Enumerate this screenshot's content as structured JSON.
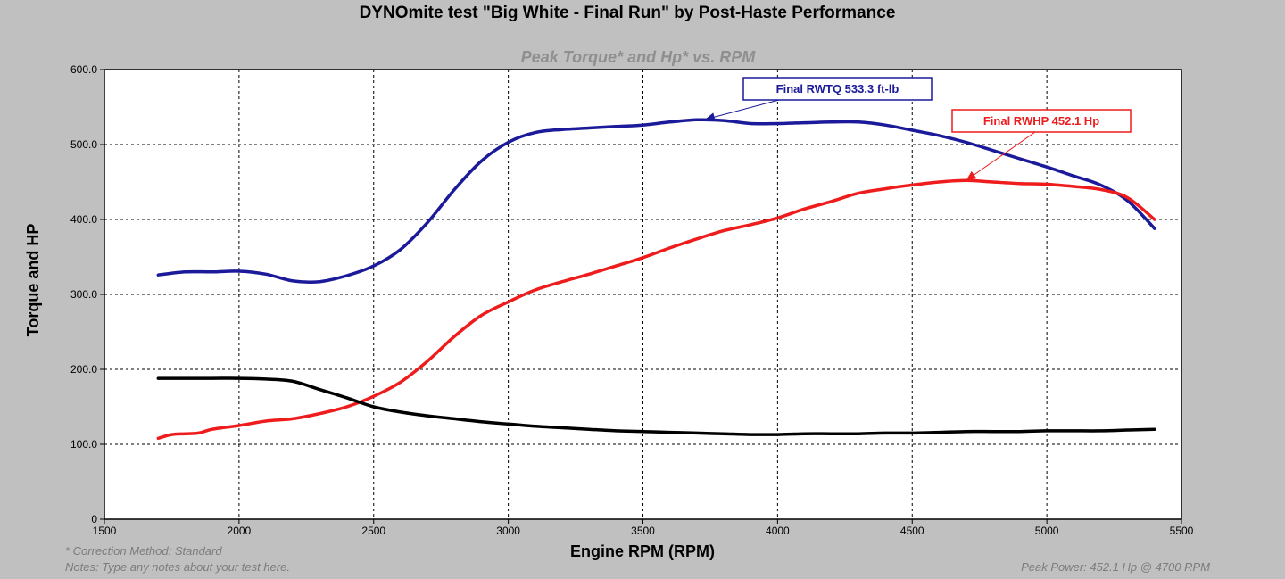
{
  "chart_data": {
    "type": "line",
    "title": "DYNOmite test \"Big White - Final Run\" by Post-Haste Performance",
    "subtitle": "Peak Torque* and Hp* vs. RPM",
    "xlabel": "Engine RPM (RPM)",
    "ylabel": "Torque and HP",
    "xlim": [
      1500,
      5500
    ],
    "ylim": [
      0,
      600
    ],
    "x_ticks": [
      "1500",
      "2000",
      "2500",
      "3000",
      "3500",
      "4000",
      "4500",
      "5000",
      "5500"
    ],
    "y_ticks": [
      "0",
      "100.0",
      "200.0",
      "300.0",
      "400.0",
      "500.0",
      "600.0"
    ],
    "grid": true,
    "series": [
      {
        "key": "torque",
        "color": "#1a1a9a",
        "x": [
          1700,
          1800,
          1900,
          2000,
          2100,
          2200,
          2300,
          2400,
          2500,
          2600,
          2700,
          2800,
          2900,
          3000,
          3100,
          3200,
          3300,
          3400,
          3500,
          3600,
          3700,
          3800,
          3900,
          4000,
          4100,
          4200,
          4300,
          4400,
          4500,
          4600,
          4700,
          4800,
          4900,
          5000,
          5100,
          5200,
          5300,
          5400
        ],
        "y": [
          326,
          330,
          330,
          331,
          327,
          318,
          317,
          325,
          338,
          360,
          396,
          440,
          478,
          503,
          516,
          520,
          522,
          524,
          526,
          530,
          533,
          532,
          528,
          528,
          529,
          530,
          530,
          526,
          519,
          512,
          503,
          492,
          481,
          470,
          458,
          446,
          425,
          388
        ]
      },
      {
        "key": "horsepower",
        "color": "#ee1c1c",
        "x": [
          1700,
          1750,
          1800,
          1850,
          1900,
          2000,
          2100,
          2200,
          2300,
          2400,
          2500,
          2600,
          2700,
          2800,
          2900,
          3000,
          3100,
          3200,
          3300,
          3400,
          3500,
          3600,
          3700,
          3800,
          3900,
          4000,
          4100,
          4200,
          4300,
          4400,
          4500,
          4600,
          4700,
          4800,
          4900,
          5000,
          5100,
          5200,
          5300,
          5400
        ],
        "y": [
          108,
          113,
          114,
          115,
          120,
          125,
          131,
          134,
          141,
          150,
          164,
          183,
          211,
          244,
          272,
          290,
          306,
          317,
          327,
          338,
          349,
          362,
          374,
          385,
          393,
          402,
          414,
          424,
          435,
          441,
          446,
          450,
          452,
          450,
          448,
          447,
          444,
          440,
          429,
          400
        ]
      },
      {
        "key": "third",
        "color": "#000000",
        "x": [
          1700,
          1800,
          1900,
          2000,
          2100,
          2200,
          2300,
          2400,
          2500,
          2600,
          2700,
          2800,
          2900,
          3000,
          3100,
          3200,
          3300,
          3400,
          3500,
          3600,
          3700,
          3800,
          3900,
          4000,
          4100,
          4200,
          4300,
          4400,
          4500,
          4600,
          4700,
          4800,
          4900,
          5000,
          5100,
          5200,
          5300,
          5400
        ],
        "y": [
          188,
          188,
          188,
          188,
          187,
          184,
          173,
          162,
          150,
          143,
          138,
          134,
          130,
          127,
          124,
          122,
          120,
          118,
          117,
          116,
          115,
          114,
          113,
          113,
          114,
          114,
          114,
          115,
          115,
          116,
          117,
          117,
          117,
          118,
          118,
          118,
          119,
          120
        ]
      }
    ],
    "annotations": [
      {
        "key": "torque",
        "label": "Final RWTQ 533.3 ft-lb",
        "point": [
          3730,
          533.3
        ]
      },
      {
        "key": "horsepower",
        "label": "Final RWHP 452.1 Hp",
        "point": [
          4700,
          452.1
        ]
      }
    ]
  },
  "footer": {
    "correction": "* Correction Method: Standard",
    "notes": "Notes: Type any notes about your test here.",
    "peak_power": "Peak Power: 452.1 Hp @ 4700 RPM"
  }
}
